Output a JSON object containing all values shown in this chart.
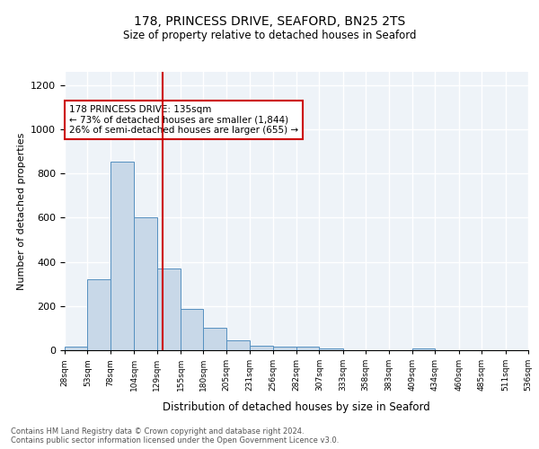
{
  "title1": "178, PRINCESS DRIVE, SEAFORD, BN25 2TS",
  "title2": "Size of property relative to detached houses in Seaford",
  "xlabel": "Distribution of detached houses by size in Seaford",
  "ylabel": "Number of detached properties",
  "bin_labels": [
    "28sqm",
    "53sqm",
    "78sqm",
    "104sqm",
    "129sqm",
    "155sqm",
    "180sqm",
    "205sqm",
    "231sqm",
    "256sqm",
    "282sqm",
    "307sqm",
    "333sqm",
    "358sqm",
    "383sqm",
    "409sqm",
    "434sqm",
    "460sqm",
    "485sqm",
    "511sqm",
    "536sqm"
  ],
  "bin_edges": [
    28,
    53,
    78,
    104,
    129,
    155,
    180,
    205,
    231,
    256,
    282,
    307,
    333,
    358,
    383,
    409,
    434,
    460,
    485,
    511,
    536
  ],
  "bar_heights": [
    15,
    320,
    855,
    600,
    370,
    185,
    100,
    45,
    20,
    15,
    15,
    10,
    0,
    0,
    0,
    10,
    0,
    0,
    0,
    0
  ],
  "bar_color": "#c8d8e8",
  "bar_edgecolor": "#5590c0",
  "red_line_x": 135,
  "ylim": [
    0,
    1260
  ],
  "yticks": [
    0,
    200,
    400,
    600,
    800,
    1000,
    1200
  ],
  "annotation_text": "178 PRINCESS DRIVE: 135sqm\n← 73% of detached houses are smaller (1,844)\n26% of semi-detached houses are larger (655) →",
  "annotation_box_color": "#ffffff",
  "annotation_box_edgecolor": "#cc0000",
  "footer_text": "Contains HM Land Registry data © Crown copyright and database right 2024.\nContains public sector information licensed under the Open Government Licence v3.0.",
  "background_color": "#eef3f8",
  "grid_color": "#ffffff"
}
